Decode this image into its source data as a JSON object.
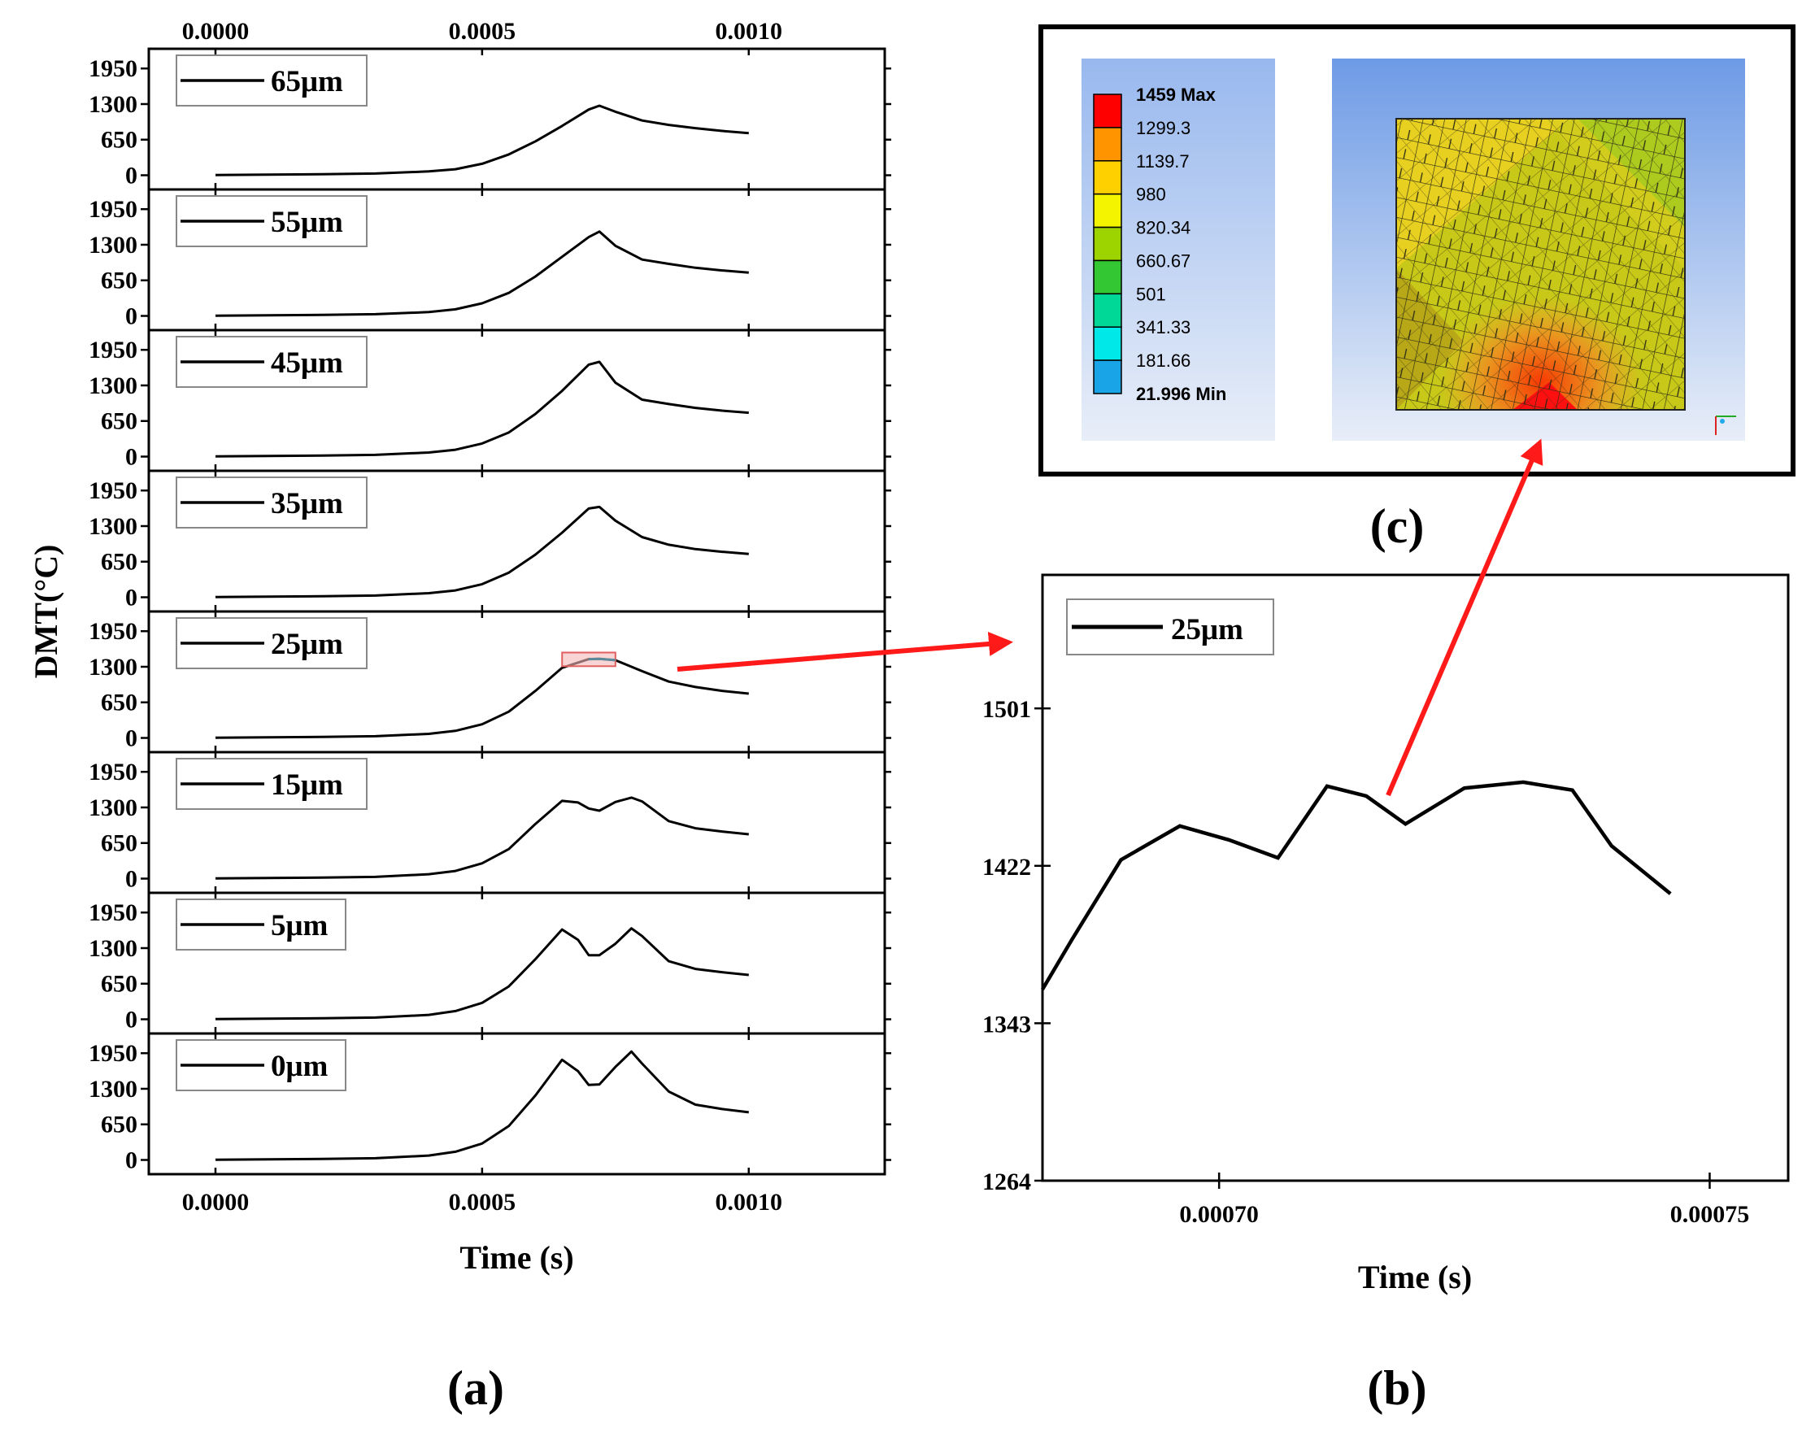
{
  "chart_data": [
    {
      "id": "a",
      "type": "line",
      "panel_label": "(a)",
      "xlabel": "Time (s)",
      "ylabel": "DMT(°C)",
      "xlim": [
        -0.000125,
        0.001255
      ],
      "ylim": [
        -230,
        2280
      ],
      "xticks": [
        0.0,
        0.0005,
        0.001
      ],
      "xtick_labels": [
        "0.0000",
        "0.0005",
        "0.0010"
      ],
      "yticks": [
        0,
        650,
        1300,
        1950
      ],
      "ytick_labels": [
        "0",
        "650",
        "1300",
        "1950"
      ],
      "series": [
        {
          "name": "65μm",
          "x": [
            0,
            0.0001,
            0.0002,
            0.0003,
            0.0004,
            0.00045,
            0.0005,
            0.00055,
            0.0006,
            0.00065,
            0.0007,
            0.00072,
            0.00075,
            0.0008,
            0.00085,
            0.0009,
            0.00095,
            0.001
          ],
          "y": [
            5,
            10,
            18,
            32,
            70,
            110,
            210,
            380,
            620,
            900,
            1200,
            1270,
            1160,
            1000,
            920,
            860,
            810,
            770
          ]
        },
        {
          "name": "55μm",
          "x": [
            0,
            0.0001,
            0.0002,
            0.0003,
            0.0004,
            0.00045,
            0.0005,
            0.00055,
            0.0006,
            0.00065,
            0.0007,
            0.00072,
            0.00075,
            0.0008,
            0.00085,
            0.0009,
            0.00095,
            0.001
          ],
          "y": [
            5,
            10,
            18,
            32,
            70,
            120,
            230,
            420,
            720,
            1080,
            1440,
            1540,
            1280,
            1030,
            950,
            880,
            830,
            790
          ]
        },
        {
          "name": "45μm",
          "x": [
            0,
            0.0001,
            0.0002,
            0.0003,
            0.0004,
            0.00045,
            0.0005,
            0.00055,
            0.0006,
            0.00065,
            0.0007,
            0.00072,
            0.00075,
            0.0008,
            0.00085,
            0.0009,
            0.00095,
            0.001
          ],
          "y": [
            5,
            10,
            18,
            32,
            75,
            125,
            240,
            440,
            780,
            1200,
            1680,
            1730,
            1350,
            1040,
            960,
            890,
            840,
            800
          ]
        },
        {
          "name": "35μm",
          "x": [
            0,
            0.0001,
            0.0002,
            0.0003,
            0.0004,
            0.00045,
            0.0005,
            0.00055,
            0.0006,
            0.00065,
            0.0007,
            0.00072,
            0.00075,
            0.0008,
            0.00085,
            0.0009,
            0.00095,
            0.001
          ],
          "y": [
            5,
            10,
            18,
            32,
            75,
            125,
            240,
            450,
            780,
            1180,
            1620,
            1650,
            1400,
            1100,
            960,
            880,
            830,
            790
          ]
        },
        {
          "name": "25μm",
          "x": [
            0,
            0.0001,
            0.0002,
            0.0003,
            0.0004,
            0.00045,
            0.0005,
            0.00055,
            0.0006,
            0.00065,
            0.0007,
            0.00072,
            0.00075,
            0.0008,
            0.00085,
            0.0009,
            0.00095,
            0.001
          ],
          "y": [
            5,
            10,
            18,
            32,
            75,
            130,
            250,
            480,
            860,
            1280,
            1440,
            1445,
            1420,
            1220,
            1030,
            930,
            860,
            810
          ]
        },
        {
          "name": "15μm",
          "x": [
            0,
            0.0001,
            0.0002,
            0.0003,
            0.0004,
            0.00045,
            0.0005,
            0.00055,
            0.0006,
            0.00065,
            0.00068,
            0.0007,
            0.00072,
            0.00075,
            0.00078,
            0.0008,
            0.00085,
            0.0009,
            0.00095,
            0.001
          ],
          "y": [
            5,
            10,
            18,
            32,
            80,
            140,
            280,
            540,
            1000,
            1420,
            1390,
            1280,
            1240,
            1400,
            1480,
            1410,
            1050,
            920,
            860,
            810
          ]
        },
        {
          "name": "5μm",
          "x": [
            0,
            0.0001,
            0.0002,
            0.0003,
            0.0004,
            0.00045,
            0.0005,
            0.00055,
            0.0006,
            0.00065,
            0.00068,
            0.0007,
            0.00072,
            0.00075,
            0.00078,
            0.0008,
            0.00085,
            0.0009,
            0.00095,
            0.001
          ],
          "y": [
            5,
            10,
            18,
            32,
            80,
            150,
            300,
            600,
            1100,
            1640,
            1450,
            1170,
            1170,
            1380,
            1660,
            1520,
            1060,
            920,
            860,
            810
          ]
        },
        {
          "name": "0μm",
          "x": [
            0,
            0.0001,
            0.0002,
            0.0003,
            0.0004,
            0.00045,
            0.0005,
            0.00055,
            0.0006,
            0.00065,
            0.00068,
            0.0007,
            0.00072,
            0.00075,
            0.00078,
            0.0008,
            0.00085,
            0.0009,
            0.00095,
            0.001
          ],
          "y": [
            5,
            10,
            18,
            32,
            80,
            150,
            300,
            620,
            1180,
            1830,
            1620,
            1370,
            1380,
            1700,
            1980,
            1760,
            1250,
            1010,
            930,
            870
          ]
        }
      ],
      "zoom_highlight_series": "25μm"
    },
    {
      "id": "b",
      "type": "line",
      "panel_label": "(b)",
      "xlabel": "Time (s)",
      "ylim": [
        1264,
        1568
      ],
      "xlim": [
        0.000682,
        0.000758
      ],
      "xticks": [
        0.0007,
        0.00075
      ],
      "xtick_labels": [
        "0.00070",
        "0.00075"
      ],
      "yticks": [
        1264,
        1343,
        1422,
        1501
      ],
      "ytick_labels": [
        "1264",
        "1343",
        "1422",
        "1501"
      ],
      "series": [
        {
          "name": "25μm",
          "x": [
            0.000682,
            0.000685,
            0.00069,
            0.000696,
            0.000701,
            0.000706,
            0.000711,
            0.000715,
            0.000719,
            0.000725,
            0.000731,
            0.000736,
            0.00074,
            0.000746
          ],
          "y": [
            1360,
            1385,
            1425,
            1442,
            1435,
            1426,
            1462,
            1457,
            1443,
            1461,
            1464,
            1460,
            1432,
            1408
          ]
        }
      ]
    },
    {
      "id": "c",
      "type": "contour",
      "panel_label": "(c)",
      "legend_values": [
        "1459 Max",
        "1299.3",
        "1139.7",
        "980",
        "820.34",
        "660.67",
        "501",
        "341.33",
        "181.66",
        "21.996 Min"
      ],
      "legend_colors": [
        "#ff0000",
        "#ff9400",
        "#ffd000",
        "#f4f400",
        "#9dd400",
        "#33c833",
        "#00d898",
        "#00e8e8",
        "#1aa4e8",
        "#0000ff"
      ]
    }
  ],
  "colors": {
    "line": "#000000",
    "arrow": "#ff1a1a",
    "highlight_fill": "#f5b8b8",
    "highlight_stroke": "#e06060",
    "highlight_line": "#5a8a9a",
    "contour_bg_top": "#6e9be6",
    "contour_bg_bottom": "#e8eef8"
  }
}
